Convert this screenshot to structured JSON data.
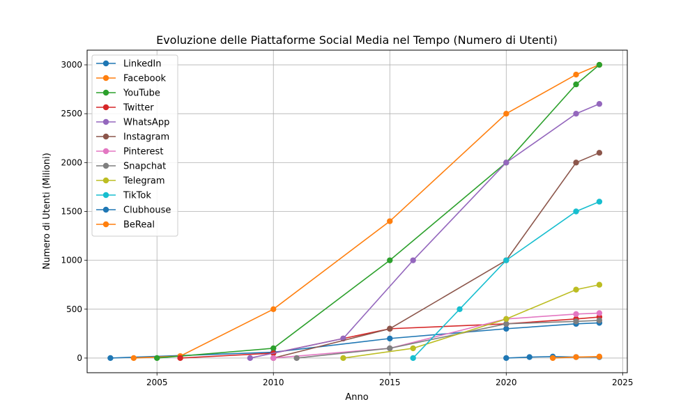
{
  "chart_data": {
    "type": "line",
    "title": "Evoluzione delle Piattaforme Social Media nel Tempo (Numero di Utenti)",
    "xlabel": "Anno",
    "ylabel": "Numero di Utenti (Milioni)",
    "xlim": [
      2002.0,
      2025.2
    ],
    "ylim": [
      -150,
      3150
    ],
    "xticks": [
      2005,
      2010,
      2015,
      2020,
      2025
    ],
    "yticks": [
      0,
      500,
      1000,
      1500,
      2000,
      2500,
      3000
    ],
    "grid": true,
    "legend_position": "upper-left",
    "series": [
      {
        "name": "LinkedIn",
        "color": "#1f77b4",
        "x": [
          2003,
          2010,
          2015,
          2020,
          2023,
          2024
        ],
        "values": [
          0,
          60,
          200,
          300,
          350,
          360
        ]
      },
      {
        "name": "Facebook",
        "color": "#ff7f0e",
        "x": [
          2004,
          2006,
          2010,
          2015,
          2020,
          2023,
          2024
        ],
        "values": [
          0,
          20,
          500,
          1400,
          2500,
          2900,
          3000
        ]
      },
      {
        "name": "YouTube",
        "color": "#2ca02c",
        "x": [
          2005,
          2010,
          2015,
          2020,
          2023,
          2024
        ],
        "values": [
          0,
          100,
          1000,
          2000,
          2800,
          3000
        ]
      },
      {
        "name": "Twitter",
        "color": "#d62728",
        "x": [
          2006,
          2010,
          2013,
          2015,
          2020,
          2023,
          2024
        ],
        "values": [
          0,
          50,
          200,
          300,
          350,
          400,
          420
        ]
      },
      {
        "name": "WhatsApp",
        "color": "#9467bd",
        "x": [
          2009,
          2013,
          2016,
          2020,
          2023,
          2024
        ],
        "values": [
          0,
          200,
          1000,
          2000,
          2500,
          2600
        ]
      },
      {
        "name": "Instagram",
        "color": "#8c564b",
        "x": [
          2010,
          2015,
          2020,
          2023,
          2024
        ],
        "values": [
          0,
          300,
          1000,
          2000,
          2100
        ]
      },
      {
        "name": "Pinterest",
        "color": "#e377c2",
        "x": [
          2010,
          2015,
          2020,
          2023,
          2024
        ],
        "values": [
          0,
          100,
          400,
          450,
          460
        ]
      },
      {
        "name": "Snapchat",
        "color": "#7f7f7f",
        "x": [
          2011,
          2015,
          2020,
          2023,
          2024
        ],
        "values": [
          0,
          100,
          350,
          375,
          385
        ]
      },
      {
        "name": "Telegram",
        "color": "#bcbd22",
        "x": [
          2013,
          2016,
          2020,
          2023,
          2024
        ],
        "values": [
          0,
          100,
          400,
          700,
          750
        ]
      },
      {
        "name": "TikTok",
        "color": "#17becf",
        "x": [
          2016,
          2018,
          2020,
          2023,
          2024
        ],
        "values": [
          0,
          500,
          1000,
          1500,
          1600
        ]
      },
      {
        "name": "Clubhouse",
        "color": "#1f77b4",
        "x": [
          2020,
          2021,
          2022,
          2023,
          2024
        ],
        "values": [
          0,
          10,
          15,
          10,
          10
        ]
      },
      {
        "name": "BeReal",
        "color": "#ff7f0e",
        "x": [
          2022,
          2023,
          2024
        ],
        "values": [
          0,
          10,
          15
        ]
      }
    ]
  }
}
